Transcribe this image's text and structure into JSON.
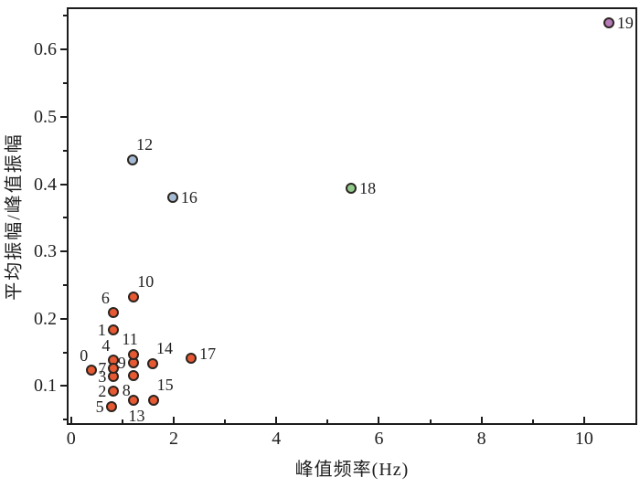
{
  "chart_data": {
    "type": "scatter",
    "title": "",
    "xlabel": "峰值频率(Hz)",
    "ylabel": "平均振幅/峰值振幅",
    "xlim": [
      -0.05,
      11
    ],
    "ylim": [
      0.045,
      0.66
    ],
    "grid": false,
    "legend": "none",
    "x_ticks": {
      "values": [
        0,
        2,
        4,
        6,
        8,
        10
      ],
      "labels": [
        "0",
        "2",
        "4",
        "6",
        "8",
        "10"
      ],
      "minor": [
        1,
        3,
        5,
        7,
        9
      ]
    },
    "y_ticks": {
      "values": [
        0.1,
        0.2,
        0.3,
        0.4,
        0.5,
        0.6
      ],
      "labels": [
        "0.1",
        "0.2",
        "0.3",
        "0.4",
        "0.5",
        "0.6"
      ],
      "minor": [
        0.05,
        0.15,
        0.25,
        0.35,
        0.45,
        0.55,
        0.65
      ]
    },
    "colors": {
      "orange": "#e65933",
      "blue": "#a4bad4",
      "green": "#8fc98c",
      "purple": "#b57ab8",
      "marker_stroke": "#2b241f",
      "axis": "#1c1c1c"
    },
    "points": [
      {
        "id": "0",
        "x": 0.4,
        "y": 0.124,
        "group": "orange",
        "anchor": "above-left"
      },
      {
        "id": "1",
        "x": 0.82,
        "y": 0.184,
        "group": "orange",
        "anchor": "left"
      },
      {
        "id": "2",
        "x": 0.83,
        "y": 0.092,
        "group": "orange",
        "anchor": "left"
      },
      {
        "id": "3",
        "x": 0.83,
        "y": 0.114,
        "group": "orange",
        "anchor": "left"
      },
      {
        "id": "4",
        "x": 0.83,
        "y": 0.138,
        "group": "orange",
        "anchor": "above-left"
      },
      {
        "id": "5",
        "x": 0.78,
        "y": 0.07,
        "group": "orange",
        "anchor": "left"
      },
      {
        "id": "6",
        "x": 0.82,
        "y": 0.209,
        "group": "orange",
        "anchor": "above-left"
      },
      {
        "id": "7",
        "x": 0.83,
        "y": 0.126,
        "group": "orange",
        "anchor": "left"
      },
      {
        "id": "8",
        "x": 1.21,
        "y": 0.115,
        "group": "orange",
        "anchor": "below-left"
      },
      {
        "id": "9",
        "x": 1.21,
        "y": 0.135,
        "group": "orange",
        "anchor": "left"
      },
      {
        "id": "10",
        "x": 1.22,
        "y": 0.232,
        "group": "orange",
        "anchor": "above-right"
      },
      {
        "id": "11",
        "x": 1.21,
        "y": 0.147,
        "group": "orange",
        "anchor": "above"
      },
      {
        "id": "12",
        "x": 1.2,
        "y": 0.436,
        "group": "blue",
        "anchor": "above-right"
      },
      {
        "id": "13",
        "x": 1.21,
        "y": 0.079,
        "group": "orange",
        "anchor": "below"
      },
      {
        "id": "14",
        "x": 1.59,
        "y": 0.133,
        "group": "orange",
        "anchor": "above-right"
      },
      {
        "id": "15",
        "x": 1.6,
        "y": 0.079,
        "group": "orange",
        "anchor": "above-right"
      },
      {
        "id": "16",
        "x": 1.98,
        "y": 0.381,
        "group": "blue",
        "anchor": "right"
      },
      {
        "id": "17",
        "x": 2.34,
        "y": 0.142,
        "group": "orange",
        "anchor": "right-up"
      },
      {
        "id": "18",
        "x": 5.46,
        "y": 0.394,
        "group": "green",
        "anchor": "right"
      },
      {
        "id": "19",
        "x": 10.48,
        "y": 0.639,
        "group": "purple",
        "anchor": "right"
      }
    ]
  }
}
